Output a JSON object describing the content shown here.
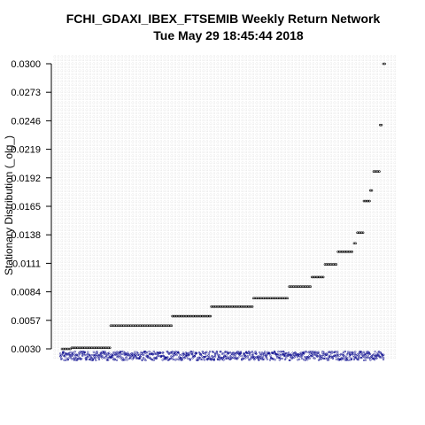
{
  "chart_data": {
    "type": "scatter",
    "title": "FCHI_GDAXI_IBEX_FTSEMIB  Weekly Return Network",
    "subtitle": "Tue May 29 18:45:44 2018",
    "ylabel": "Stationary Distribution (_olg_)",
    "xlabel": "",
    "yticks": [
      "0.0300",
      "0.0273",
      "0.0246",
      "0.0219",
      "0.0192",
      "0.0165",
      "0.0138",
      "0.0111",
      "0.0084",
      "0.0057",
      "0.0030"
    ],
    "ylim": [
      0.003,
      0.03
    ],
    "grid": true,
    "series": [
      {
        "color": "#000000",
        "x_range": [
          1,
          100
        ],
        "steps": [
          {
            "from": 1,
            "to": 3,
            "y": 0.003
          },
          {
            "from": 4,
            "to": 15,
            "y": 0.0031
          },
          {
            "from": 16,
            "to": 34,
            "y": 0.0052
          },
          {
            "from": 35,
            "to": 46,
            "y": 0.0061
          },
          {
            "from": 47,
            "to": 59,
            "y": 0.007
          },
          {
            "from": 60,
            "to": 70,
            "y": 0.0078
          },
          {
            "from": 71,
            "to": 77,
            "y": 0.0089
          },
          {
            "from": 78,
            "to": 81,
            "y": 0.0098
          },
          {
            "from": 82,
            "to": 85,
            "y": 0.011
          },
          {
            "from": 86,
            "to": 90,
            "y": 0.0122
          },
          {
            "from": 91,
            "to": 91,
            "y": 0.013
          },
          {
            "from": 92,
            "to": 93,
            "y": 0.014
          },
          {
            "from": 94,
            "to": 95,
            "y": 0.017
          },
          {
            "from": 96,
            "to": 96,
            "y": 0.018
          },
          {
            "from": 97,
            "to": 98,
            "y": 0.0198
          },
          {
            "from": 99,
            "to": 99,
            "y": 0.0242
          },
          {
            "from": 100,
            "to": 100,
            "y": 0.03
          }
        ]
      },
      {
        "color": "#00008b",
        "x_range": [
          1,
          100
        ],
        "base_y": 0.003,
        "description_values": "dense band of points at the bottom of the plot"
      }
    ]
  }
}
